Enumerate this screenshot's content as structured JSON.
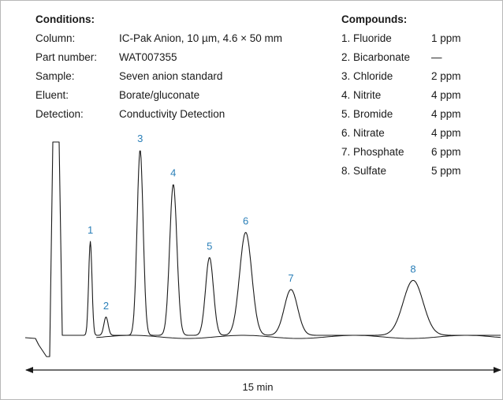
{
  "conditions": {
    "title": "Conditions:",
    "rows": [
      {
        "label": "Column:",
        "value": "IC-Pak Anion, 10 µm, 4.6 × 50 mm"
      },
      {
        "label": "Part number:",
        "value": "WAT007355"
      },
      {
        "label": "Sample:",
        "value": "Seven anion standard"
      },
      {
        "label": "Eluent:",
        "value": "Borate/gluconate"
      },
      {
        "label": "Detection:",
        "value": "Conductivity Detection"
      }
    ]
  },
  "compounds": {
    "title": "Compounds:",
    "rows": [
      {
        "name": "1. Fluoride",
        "conc": "1 ppm"
      },
      {
        "name": "2. Bicarbonate",
        "conc": "—"
      },
      {
        "name": "3. Chloride",
        "conc": "2 ppm"
      },
      {
        "name": "4. Nitrite",
        "conc": "4 ppm"
      },
      {
        "name": "5. Bromide",
        "conc": "4 ppm"
      },
      {
        "name": "6. Nitrate",
        "conc": "4 ppm"
      },
      {
        "name": "7. Phosphate",
        "conc": "6 ppm"
      },
      {
        "name": "8. Sulfate",
        "conc": "5 ppm"
      }
    ]
  },
  "chart_data": {
    "type": "line",
    "x_axis_label": "15 min",
    "x_unit": "min",
    "xlim": [
      0,
      15
    ],
    "y_scale_shown": false,
    "peak_color": "#2a7fb8",
    "trace_color": "#1a1a1a",
    "peaks": [
      {
        "label": "1",
        "time": 1.4,
        "height": 0.41,
        "width": 0.055
      },
      {
        "label": "2",
        "time": 1.92,
        "height": 0.08,
        "width": 0.07
      },
      {
        "label": "3",
        "time": 3.05,
        "height": 0.81,
        "width": 0.1
      },
      {
        "label": "4",
        "time": 4.15,
        "height": 0.66,
        "width": 0.12
      },
      {
        "label": "5",
        "time": 5.35,
        "height": 0.34,
        "width": 0.13
      },
      {
        "label": "6",
        "time": 6.55,
        "height": 0.45,
        "width": 0.2
      },
      {
        "label": "7",
        "time": 8.05,
        "height": 0.2,
        "width": 0.22
      },
      {
        "label": "8",
        "time": 12.1,
        "height": 0.24,
        "width": 0.33
      }
    ]
  }
}
